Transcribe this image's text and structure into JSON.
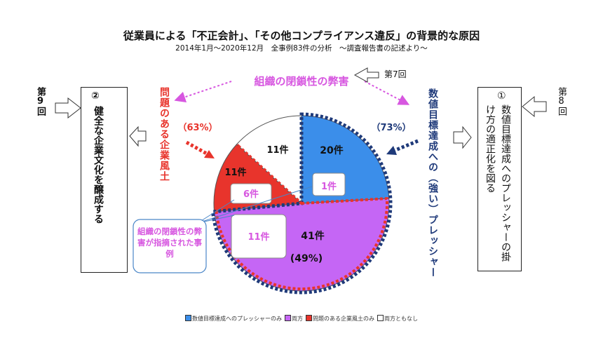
{
  "title": "従業員による「不正会計」、「その他コンプライアンス違反」の背景的な原因",
  "subtitle": "2014年1月〜2020年12月　全事例83件の分析　〜調査報告書の記述より〜",
  "top_label": "組織の閉鎖性の弊害",
  "rank7_label": "第7回",
  "left_red_label": "問題のある企業風土",
  "red_pct": "（63%）",
  "blue_pct": "（73%）",
  "right_navy_label": "数値目標達成への（強い）プレッシャー",
  "left_box": {
    "num": "②",
    "text": "健全な企業文化を醸成する"
  },
  "left_rank": "第9回",
  "right_box": {
    "num": "①",
    "text": "数値目標達成へのプレッシャーの掛け方の適正化を図る"
  },
  "right_rank": "第8回",
  "callout": "組織の閉鎖性の弊害が指摘された事例",
  "purple_pct": "(49%)",
  "slice_labels": {
    "blue": "20件",
    "blue_inner": "1件",
    "none": "11件",
    "red": "11件",
    "red_inner": "6件",
    "purple": "41件",
    "purple_inner": "11件"
  },
  "colors": {
    "blue": "#3B8EEA",
    "purple": "#C566F5",
    "red": "#E8342C",
    "white": "#FFFFFF",
    "navy": "#1F3A7A",
    "pink": "#D757E0"
  },
  "chart_data": {
    "type": "pie",
    "total": 83,
    "categories": [
      "数値目標達成へのプレッシャーのみ",
      "両方",
      "問題のある企業風土のみ",
      "両方ともなし"
    ],
    "values": [
      20,
      41,
      11,
      11
    ],
    "colors": [
      "#3B8EEA",
      "#C566F5",
      "#E8342C",
      "#FFFFFF"
    ],
    "percent_labels": {
      "pressure_total": "73%",
      "culture_total": "63%",
      "both": "49%"
    },
    "closed_org_counts": {
      "pressure_only": 1,
      "both": 11,
      "culture_only": 6
    },
    "legend": [
      "数値目標達成へのプレッシャーのみ",
      "両方",
      "問題のある企業風土のみ",
      "両方ともなし"
    ],
    "legend_position": "bottom"
  }
}
